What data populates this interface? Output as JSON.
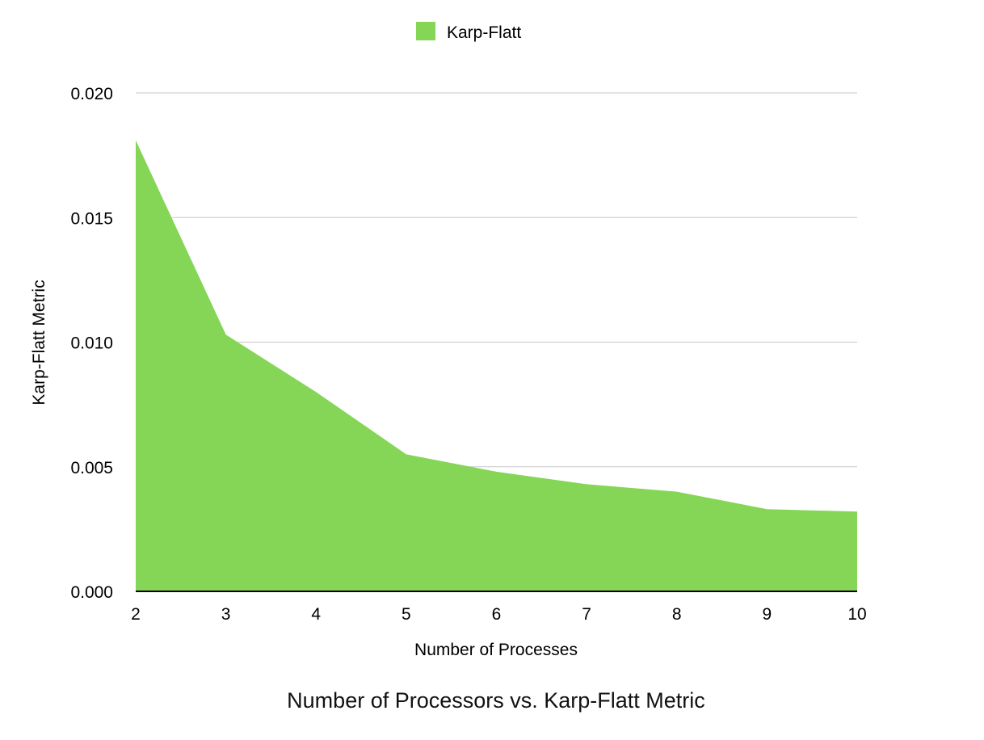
{
  "chart_data": {
    "type": "area",
    "title": "Number of Processors vs. Karp-Flatt Metric",
    "xlabel": "Number of Processes",
    "ylabel": "Karp-Flatt Metric",
    "categories": [
      "2",
      "3",
      "4",
      "5",
      "6",
      "7",
      "8",
      "9",
      "10"
    ],
    "series": [
      {
        "name": "Karp-Flatt",
        "color": "#85d657",
        "values": [
          0.0181,
          0.0103,
          0.008,
          0.0055,
          0.0048,
          0.0043,
          0.004,
          0.0033,
          0.0032
        ]
      }
    ],
    "ylim": [
      0,
      0.02
    ],
    "yticks": [
      "0.000",
      "0.005",
      "0.010",
      "0.015",
      "0.020"
    ],
    "grid": true,
    "legend_position": "top-center"
  }
}
